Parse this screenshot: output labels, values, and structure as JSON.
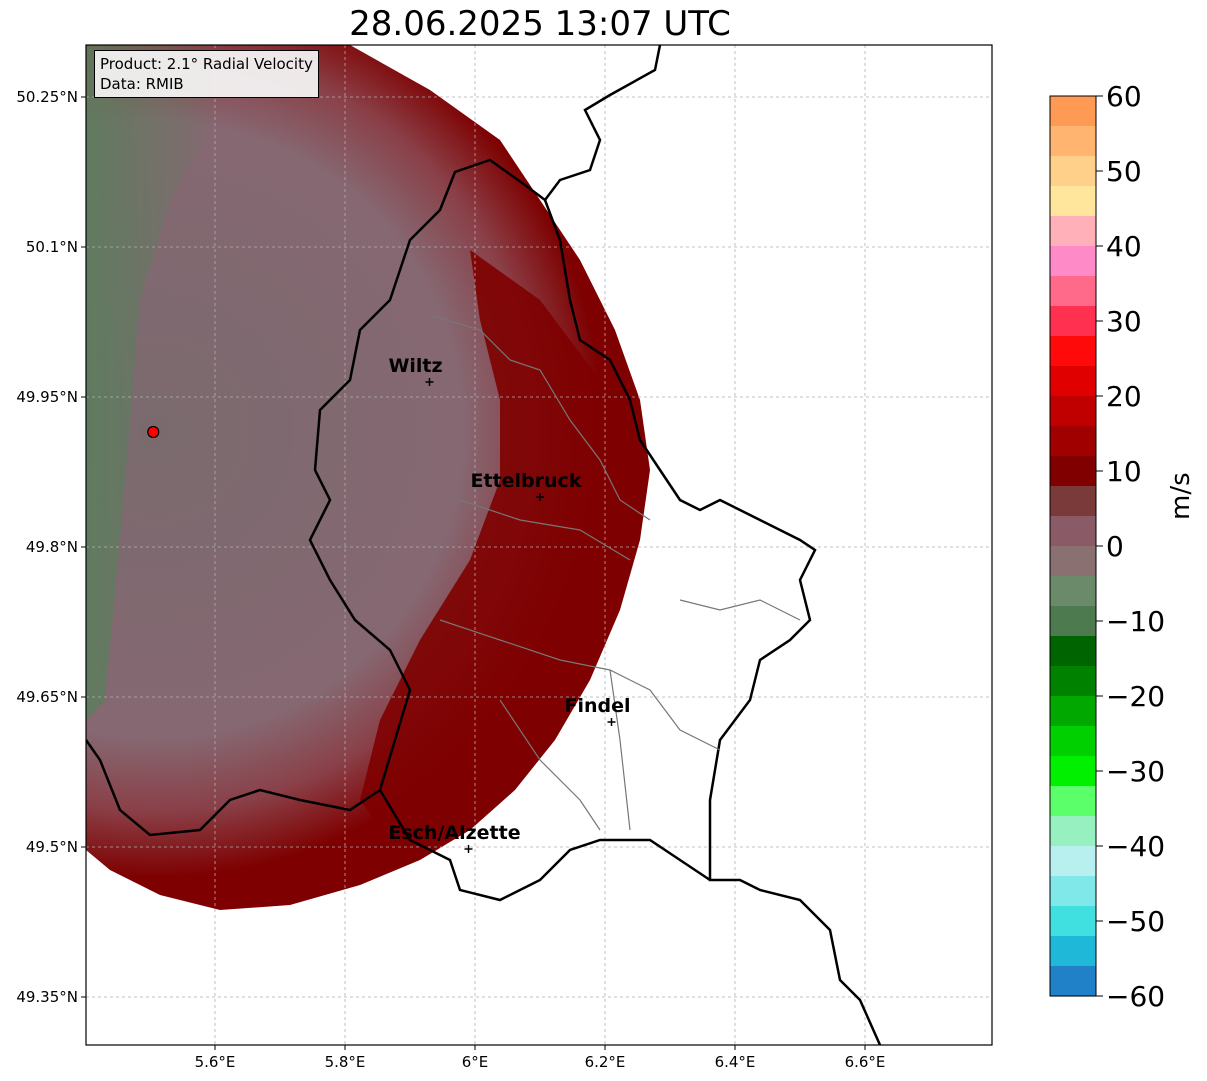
{
  "title": "28.06.2025 13:07 UTC",
  "info": {
    "product": "Product: 2.1° Radial Velocity",
    "data": "Data: RMIB"
  },
  "axes": {
    "x_ticks": [
      "5.6°E",
      "5.8°E",
      "6°E",
      "6.2°E",
      "6.4°E",
      "6.6°E"
    ],
    "y_ticks": [
      "50.25°N",
      "50.1°N",
      "49.95°N",
      "49.8°N",
      "49.65°N",
      "49.5°N",
      "49.35°N"
    ]
  },
  "cities": [
    {
      "name": "Wiltz",
      "lon": 5.93,
      "lat": 49.965
    },
    {
      "name": "Ettelbruck",
      "lon": 6.1,
      "lat": 49.85
    },
    {
      "name": "Findel",
      "lon": 6.21,
      "lat": 49.625
    },
    {
      "name": "Esch/Alzette",
      "lon": 5.99,
      "lat": 49.498
    }
  ],
  "radar_site": {
    "lon": 5.505,
    "lat": 49.915
  },
  "colorbar": {
    "label": "m/s",
    "ticks": [
      "60",
      "50",
      "40",
      "30",
      "20",
      "10",
      "0",
      "−10",
      "−20",
      "−30",
      "−40",
      "−50",
      "−60"
    ],
    "colors": [
      "#ff9a55",
      "#ffb570",
      "#ffd08a",
      "#ffe69c",
      "#ffb0b8",
      "#ff8ac8",
      "#ff6a8a",
      "#ff3050",
      "#ff0a0a",
      "#e00000",
      "#c00000",
      "#a00000",
      "#800000",
      "#7a3a3a",
      "#8a5a66",
      "#8a7070",
      "#6a8a6a",
      "#4e7a50",
      "#006400",
      "#008200",
      "#00a800",
      "#00d000",
      "#00f000",
      "#5aff6a",
      "#96f0c0",
      "#b8f0f0",
      "#80e8e8",
      "#40e0e0",
      "#20b8d8",
      "#2080c8"
    ]
  },
  "colors": {
    "velocity_far_negative": "#5e8060",
    "velocity_near_zero": "#886a72",
    "velocity_mid_positive": "#8c3a40",
    "velocity_high_positive": "#7e0000"
  }
}
